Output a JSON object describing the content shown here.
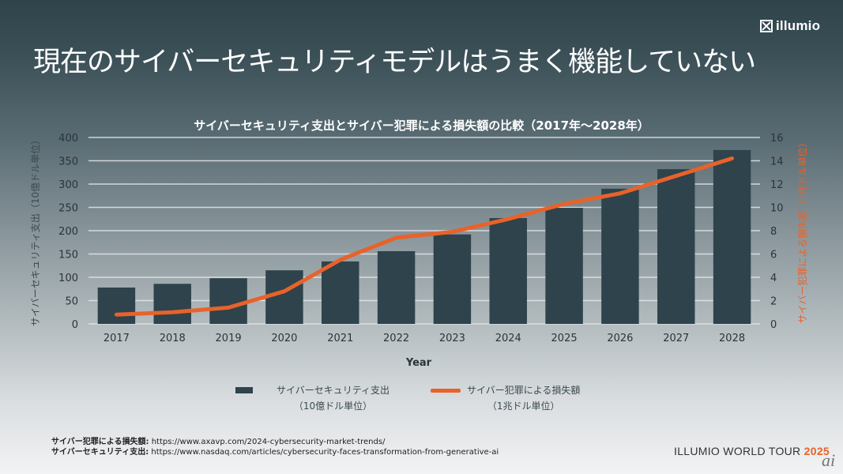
{
  "header": {
    "logo_text": "illumio",
    "slide_title": "現在のサイバーセキュリティモデルはうまく機能していない"
  },
  "chart_data": {
    "type": "bar+line",
    "title": "サイバーセキュリティ支出とサイバー犯罪による損失額の比較（2017年～2028年）",
    "xlabel": "Year",
    "ylabel_left": "サイバーセキュリティ支出（10億ドル単位）",
    "ylabel_right": "サイバー犯罪による損失額（1兆ドル単位）",
    "categories": [
      "2017",
      "2018",
      "2019",
      "2020",
      "2021",
      "2022",
      "2023",
      "2024",
      "2025",
      "2026",
      "2027",
      "2028"
    ],
    "series": [
      {
        "name": "サイバーセキュリティ支出",
        "unit": "（10億ドル単位）",
        "type": "bar",
        "axis": "left",
        "color": "#2e434b",
        "values": [
          78,
          86,
          98,
          115,
          134,
          156,
          192,
          227,
          249,
          290,
          332,
          373
        ]
      },
      {
        "name": "サイバー犯罪による損失額",
        "unit": "（1兆ドル単位）",
        "type": "line",
        "axis": "right",
        "color": "#e8622a",
        "values": [
          0.8,
          1.0,
          1.4,
          2.8,
          5.5,
          7.4,
          7.9,
          9.0,
          10.3,
          11.2,
          12.7,
          14.2
        ]
      }
    ],
    "ylim_left": [
      0,
      400
    ],
    "yticks_left": [
      0,
      50,
      100,
      150,
      200,
      250,
      300,
      350,
      400
    ],
    "ylim_right": [
      0,
      16
    ],
    "yticks_right": [
      0,
      2,
      4,
      6,
      8,
      10,
      12,
      14,
      16
    ],
    "grid": true,
    "legend_position": "bottom"
  },
  "legend": {
    "bar_label": "サイバーセキュリティ支出",
    "bar_unit": "（10億ドル単位）",
    "line_label": "サイバー犯罪による損失額",
    "line_unit": "（1兆ドル単位）"
  },
  "sources": [
    {
      "label": "サイバー犯罪による損失額:",
      "url": "https://www.axavp.com/2024-cybersecurity-market-trends/"
    },
    {
      "label": "サイバーセキュリティ支出:",
      "url": "https://www.nasdaq.com/articles/cybersecurity-faces-transformation-from-generative-ai"
    }
  ],
  "footer": {
    "event": "ILLUMIO WORLD TOUR",
    "year": "2025",
    "watermark": "ai"
  }
}
